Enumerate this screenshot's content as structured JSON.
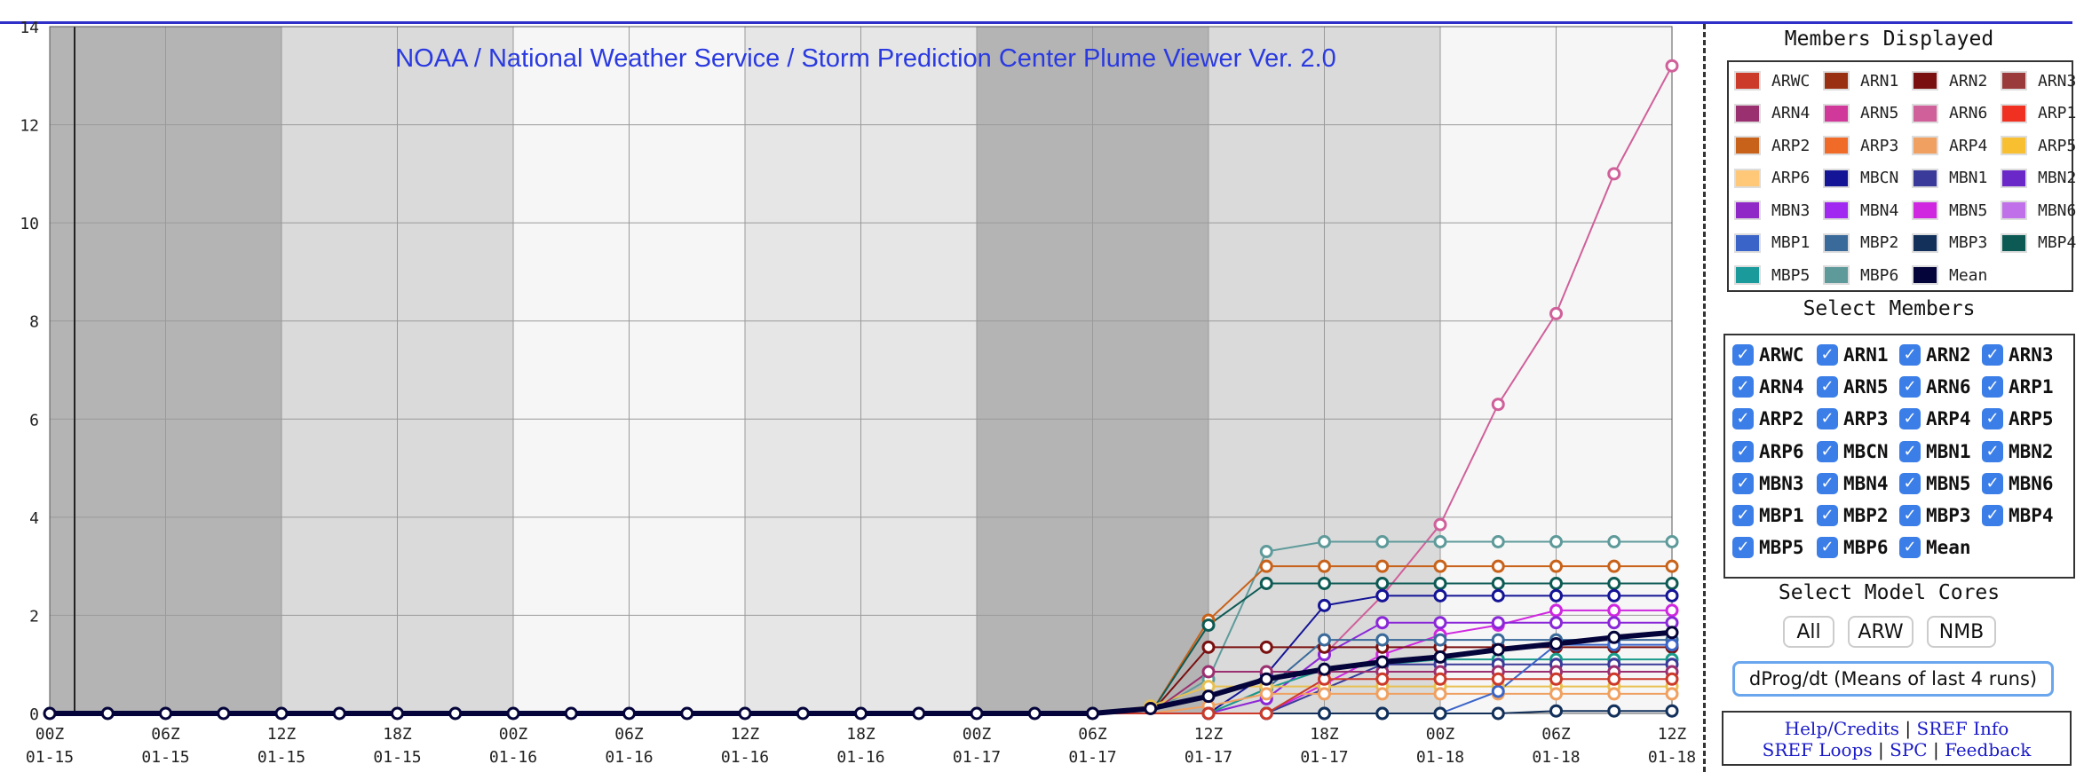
{
  "chart_data": {
    "type": "line",
    "title": "NOAA / National Weather Service / Storm Prediction Center Plume Viewer Ver. 2.0",
    "ylim": [
      0,
      14
    ],
    "yticks": [
      0,
      2,
      4,
      6,
      8,
      10,
      12,
      14
    ],
    "grid": true,
    "x": [
      "00Z 01-15",
      "03Z 01-15",
      "06Z 01-15",
      "09Z 01-15",
      "12Z 01-15",
      "15Z 01-15",
      "18Z 01-15",
      "21Z 01-15",
      "00Z 01-16",
      "03Z 01-16",
      "06Z 01-16",
      "09Z 01-16",
      "12Z 01-16",
      "15Z 01-16",
      "18Z 01-16",
      "21Z 01-16",
      "00Z 01-17",
      "03Z 01-17",
      "06Z 01-17",
      "09Z 01-17",
      "12Z 01-17",
      "15Z 01-17",
      "18Z 01-17",
      "21Z 01-17",
      "00Z 01-18",
      "03Z 01-18",
      "06Z 01-18",
      "09Z 01-18",
      "12Z 01-18"
    ],
    "x_tick_labels": [
      {
        "hour": "00Z",
        "date": "01-15"
      },
      {
        "hour": "06Z",
        "date": "01-15"
      },
      {
        "hour": "12Z",
        "date": "01-15"
      },
      {
        "hour": "18Z",
        "date": "01-15"
      },
      {
        "hour": "00Z",
        "date": "01-16"
      },
      {
        "hour": "06Z",
        "date": "01-16"
      },
      {
        "hour": "12Z",
        "date": "01-16"
      },
      {
        "hour": "18Z",
        "date": "01-16"
      },
      {
        "hour": "00Z",
        "date": "01-17"
      },
      {
        "hour": "06Z",
        "date": "01-17"
      },
      {
        "hour": "12Z",
        "date": "01-17"
      },
      {
        "hour": "18Z",
        "date": "01-17"
      },
      {
        "hour": "00Z",
        "date": "01-18"
      },
      {
        "hour": "06Z",
        "date": "01-18"
      },
      {
        "hour": "12Z",
        "date": "01-18"
      }
    ],
    "series": [
      {
        "name": "ARN6",
        "color": "#d0609a",
        "values": [
          0,
          0,
          0,
          0,
          0,
          0,
          0,
          0,
          0,
          0,
          0,
          0,
          0,
          0,
          0,
          0,
          0,
          0,
          0,
          0,
          0,
          0.3,
          1.2,
          2.4,
          3.85,
          6.3,
          8.15,
          11.0,
          13.2
        ]
      },
      {
        "name": "MBP6",
        "color": "#5f9a9a",
        "values": [
          0,
          0,
          0,
          0,
          0,
          0,
          0,
          0,
          0,
          0,
          0,
          0,
          0,
          0,
          0,
          0,
          0,
          0,
          0,
          0,
          0.7,
          3.3,
          3.5,
          3.5,
          3.5,
          3.5,
          3.5,
          3.5,
          3.5
        ]
      },
      {
        "name": "ARP2",
        "color": "#c8621a",
        "values": [
          0,
          0,
          0,
          0,
          0,
          0,
          0,
          0,
          0,
          0,
          0,
          0,
          0,
          0,
          0,
          0,
          0,
          0,
          0,
          0,
          1.9,
          3.0,
          3.0,
          3.0,
          3.0,
          3.0,
          3.0,
          3.0,
          3.0
        ]
      },
      {
        "name": "MBP4",
        "color": "#0d5a54",
        "values": [
          0,
          0,
          0,
          0,
          0,
          0,
          0,
          0,
          0,
          0,
          0,
          0,
          0,
          0,
          0,
          0,
          0,
          0,
          0,
          0,
          1.8,
          2.65,
          2.65,
          2.65,
          2.65,
          2.65,
          2.65,
          2.65,
          2.65
        ]
      },
      {
        "name": "MBCN",
        "color": "#141496",
        "values": [
          0,
          0,
          0,
          0,
          0,
          0,
          0,
          0,
          0,
          0,
          0,
          0,
          0,
          0,
          0,
          0,
          0,
          0,
          0,
          0,
          0,
          0.8,
          2.2,
          2.4,
          2.4,
          2.4,
          2.4,
          2.4,
          2.4
        ]
      },
      {
        "name": "MBN5",
        "color": "#cf28e0",
        "values": [
          0,
          0,
          0,
          0,
          0,
          0,
          0,
          0,
          0,
          0,
          0,
          0,
          0,
          0,
          0,
          0,
          0,
          0,
          0,
          0,
          0,
          0,
          0.6,
          1.2,
          1.6,
          1.8,
          2.1,
          2.1,
          2.1
        ]
      },
      {
        "name": "MBN4",
        "color": "#8a28d8",
        "values": [
          0,
          0,
          0,
          0,
          0,
          0,
          0,
          0,
          0,
          0,
          0,
          0,
          0,
          0,
          0,
          0,
          0,
          0,
          0,
          0,
          0,
          0.3,
          1.2,
          1.85,
          1.85,
          1.85,
          1.85,
          1.85,
          1.85
        ]
      },
      {
        "name": "ARN2",
        "color": "#7a1010",
        "values": [
          0,
          0,
          0,
          0,
          0,
          0,
          0,
          0,
          0,
          0,
          0,
          0,
          0,
          0,
          0,
          0,
          0,
          0,
          0,
          0,
          1.35,
          1.35,
          1.35,
          1.35,
          1.35,
          1.35,
          1.35,
          1.35,
          1.35
        ]
      },
      {
        "name": "MBP2",
        "color": "#3a6a9a",
        "values": [
          0,
          0,
          0,
          0,
          0,
          0,
          0,
          0,
          0,
          0,
          0,
          0,
          0,
          0,
          0,
          0,
          0,
          0,
          0,
          0,
          0,
          0.5,
          1.5,
          1.5,
          1.5,
          1.5,
          1.5,
          1.5,
          1.5
        ]
      },
      {
        "name": "MBP5",
        "color": "#1a9a8a",
        "values": [
          0,
          0,
          0,
          0,
          0,
          0,
          0,
          0,
          0,
          0,
          0,
          0,
          0,
          0,
          0,
          0,
          0,
          0,
          0,
          0,
          0,
          0.5,
          0.9,
          1.0,
          1.1,
          1.1,
          1.1,
          1.1,
          1.1
        ]
      },
      {
        "name": "MBN1",
        "color": "#3a3a9a",
        "values": [
          0,
          0,
          0,
          0,
          0,
          0,
          0,
          0,
          0,
          0,
          0,
          0,
          0,
          0,
          0,
          0,
          0,
          0,
          0,
          0,
          0,
          0,
          0.5,
          1.0,
          1.0,
          1.0,
          1.0,
          1.0,
          1.0
        ]
      },
      {
        "name": "ARP5",
        "color": "#e8c050",
        "values": [
          0,
          0,
          0,
          0,
          0,
          0,
          0,
          0,
          0,
          0,
          0,
          0,
          0,
          0,
          0,
          0,
          0,
          0,
          0,
          0.15,
          0.55,
          0.55,
          0.55,
          0.55,
          0.55,
          0.55,
          0.55,
          0.55,
          0.55
        ]
      },
      {
        "name": "ARN4",
        "color": "#9a3070",
        "values": [
          0,
          0,
          0,
          0,
          0,
          0,
          0,
          0,
          0,
          0,
          0,
          0,
          0,
          0,
          0,
          0,
          0,
          0,
          0,
          0,
          0.85,
          0.85,
          0.85,
          0.85,
          0.85,
          0.85,
          0.85,
          0.85,
          0.85
        ]
      },
      {
        "name": "ARP4",
        "color": "#f0a060",
        "values": [
          0,
          0,
          0,
          0,
          0,
          0,
          0,
          0,
          0,
          0,
          0,
          0,
          0,
          0,
          0,
          0,
          0,
          0,
          0,
          0,
          0.15,
          0.4,
          0.4,
          0.4,
          0.4,
          0.4,
          0.4,
          0.4,
          0.4
        ]
      },
      {
        "name": "MBP1",
        "color": "#3a64c8",
        "values": [
          0,
          0,
          0,
          0,
          0,
          0,
          0,
          0,
          0,
          0,
          0,
          0,
          0,
          0,
          0,
          0,
          0,
          0,
          0,
          0,
          0,
          0,
          0,
          0,
          0,
          0.45,
          1.4,
          1.4,
          1.4
        ]
      },
      {
        "name": "MBP3",
        "color": "#12305a",
        "values": [
          0,
          0,
          0,
          0,
          0,
          0,
          0,
          0,
          0,
          0,
          0,
          0,
          0,
          0,
          0,
          0,
          0,
          0,
          0,
          0,
          0,
          0,
          0,
          0,
          0,
          0,
          0.05,
          0.05,
          0.05
        ]
      },
      {
        "name": "ARWC",
        "color": "#cc3a2a",
        "values": [
          0,
          0,
          0,
          0,
          0,
          0,
          0,
          0,
          0,
          0,
          0,
          0,
          0,
          0,
          0,
          0,
          0,
          0,
          0,
          0,
          0,
          0,
          0.7,
          0.7,
          0.7,
          0.7,
          0.7,
          0.7,
          0.7
        ]
      },
      {
        "name": "Mean",
        "color": "#04043a",
        "values": [
          0,
          0,
          0,
          0,
          0,
          0,
          0,
          0,
          0,
          0,
          0,
          0,
          0,
          0,
          0,
          0,
          0,
          0,
          0,
          0.1,
          0.35,
          0.7,
          0.9,
          1.05,
          1.15,
          1.3,
          1.42,
          1.55,
          1.65
        ]
      }
    ]
  },
  "legend": {
    "title": "Members Displayed",
    "items": [
      {
        "label": "ARWC",
        "color": "#cc3a2a"
      },
      {
        "label": "ARN1",
        "color": "#9a3012"
      },
      {
        "label": "ARN2",
        "color": "#7a1010"
      },
      {
        "label": "ARN3",
        "color": "#9a3a3a"
      },
      {
        "label": "ARN4",
        "color": "#9a3070"
      },
      {
        "label": "ARN5",
        "color": "#d0389a"
      },
      {
        "label": "ARN6",
        "color": "#d0609a"
      },
      {
        "label": "ARP1",
        "color": "#f03020"
      },
      {
        "label": "ARP2",
        "color": "#c8621a"
      },
      {
        "label": "ARP3",
        "color": "#f06a28"
      },
      {
        "label": "ARP4",
        "color": "#f0a060"
      },
      {
        "label": "ARP5",
        "color": "#f8c030"
      },
      {
        "label": "ARP6",
        "color": "#ffc878"
      },
      {
        "label": "MBCN",
        "color": "#141496"
      },
      {
        "label": "MBN1",
        "color": "#3a3a9a"
      },
      {
        "label": "MBN2",
        "color": "#6a28c8"
      },
      {
        "label": "MBN3",
        "color": "#9028c8"
      },
      {
        "label": "MBN4",
        "color": "#a028f0"
      },
      {
        "label": "MBN5",
        "color": "#cf28e0"
      },
      {
        "label": "MBN6",
        "color": "#c070e8"
      },
      {
        "label": "MBP1",
        "color": "#3a64c8"
      },
      {
        "label": "MBP2",
        "color": "#3a6a9a"
      },
      {
        "label": "MBP3",
        "color": "#12305a"
      },
      {
        "label": "MBP4",
        "color": "#0d5a54"
      },
      {
        "label": "MBP5",
        "color": "#1a9a9a"
      },
      {
        "label": "MBP6",
        "color": "#5f9a9a"
      },
      {
        "label": "Mean",
        "color": "#04043a"
      }
    ]
  },
  "select_members": {
    "title": "Select Members",
    "check_mark": "✓",
    "items": [
      "ARWC",
      "ARN1",
      "ARN2",
      "ARN3",
      "ARN4",
      "ARN5",
      "ARN6",
      "ARP1",
      "ARP2",
      "ARP3",
      "ARP4",
      "ARP5",
      "ARP6",
      "MBCN",
      "MBN1",
      "MBN2",
      "MBN3",
      "MBN4",
      "MBN5",
      "MBN6",
      "MBP1",
      "MBP2",
      "MBP3",
      "MBP4",
      "MBP5",
      "MBP6",
      "Mean"
    ]
  },
  "model_cores": {
    "title": "Select Model Cores",
    "all": "All",
    "arw": "ARW",
    "nmb": "NMB"
  },
  "dprog_button": "dProg/dt (Means of last 4 runs)",
  "links": {
    "help": "Help/Credits",
    "sref_info": "SREF Info",
    "sref_loops": "SREF Loops",
    "spc": "SPC",
    "feedback": "Feedback",
    "sep": "|"
  }
}
